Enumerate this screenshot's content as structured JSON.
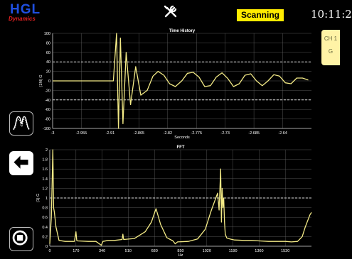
{
  "header": {
    "logo_main": "HGL",
    "logo_sub": "Dynamics",
    "status_label": "Scanning",
    "time": "10:11:2"
  },
  "channel": {
    "name": "CH 1",
    "unit": "G"
  },
  "colors": {
    "trace": "#f3ea86",
    "status_bg": "#ffeb00",
    "panel_bg": "#fff3a6",
    "grid": "#6a6a6a"
  },
  "icons": [
    "tools-icon",
    "peak-icon",
    "back-arrow-icon",
    "stop-icon"
  ],
  "chart_data": [
    {
      "type": "line",
      "title": "Time History",
      "xlabel": "Seconds",
      "ylabel": "(1M) G",
      "x_ticks": [
        "-3",
        "-2.955",
        "-2.91",
        "-2.865",
        "-2.82",
        "-2.775",
        "-2.73",
        "-2.685",
        "-2.64"
      ],
      "y_ticks": [
        "100",
        "80",
        "60",
        "40",
        "20",
        "0",
        "-20",
        "-40",
        "-60",
        "-80",
        "-100"
      ],
      "xlim": [
        -3,
        -2.595
      ],
      "ylim": [
        -100,
        100
      ],
      "dashed_limits": [
        40,
        -40
      ],
      "series": [
        {
          "x": [
            -3.0,
            -2.92,
            -2.905,
            -2.9,
            -2.897,
            -2.894,
            -2.89,
            -2.885,
            -2.878,
            -2.87,
            -2.862,
            -2.852,
            -2.843,
            -2.835,
            -2.826,
            -2.817,
            -2.808,
            -2.798,
            -2.789,
            -2.78,
            -2.771,
            -2.762,
            -2.753,
            -2.744,
            -2.735,
            -2.726,
            -2.717,
            -2.708,
            -2.699,
            -2.69,
            -2.681,
            -2.672,
            -2.663,
            -2.654,
            -2.645,
            -2.636,
            -2.627,
            -2.618,
            -2.609,
            -2.6
          ],
          "y": [
            0,
            0,
            0,
            100,
            -100,
            90,
            -90,
            60,
            -50,
            30,
            -30,
            -20,
            10,
            20,
            12,
            -6,
            -12,
            0,
            16,
            18,
            8,
            -12,
            -10,
            8,
            17,
            5,
            -12,
            -6,
            12,
            15,
            0,
            -10,
            0,
            13,
            10,
            -4,
            -6,
            6,
            6,
            2
          ]
        }
      ]
    },
    {
      "type": "line",
      "title": "FFT",
      "xlabel": "Hz",
      "ylabel": "(1) G",
      "x_ticks": [
        "0",
        "170",
        "340",
        "510",
        "680",
        "850",
        "1020",
        "1190",
        "1360",
        "1530"
      ],
      "y_ticks": [
        "2",
        "1.8",
        "1.6",
        "1.4",
        "1.2",
        "1",
        "0.8",
        "0.6",
        "0.4",
        "0.2",
        "0"
      ],
      "xlim": [
        0,
        1700
      ],
      "ylim": [
        0,
        2
      ],
      "dashed_limits": [
        1
      ],
      "series": [
        {
          "x": [
            0,
            10,
            20,
            25,
            30,
            40,
            60,
            100,
            160,
            170,
            175,
            180,
            250,
            300,
            335,
            345,
            380,
            420,
            470,
            475,
            480,
            550,
            620,
            660,
            690,
            720,
            760,
            800,
            815,
            830,
            900,
            960,
            1010,
            1050,
            1090,
            1100,
            1110,
            1115,
            1120,
            1125,
            1130,
            1135,
            1140,
            1150,
            1170,
            1200,
            1260,
            1310,
            1360,
            1420,
            1480,
            1530,
            1570,
            1610,
            1640,
            1660,
            1690,
            1700
          ],
          "y": [
            0.05,
            0.6,
            2.0,
            0.8,
            0.7,
            0.4,
            0.12,
            0.1,
            0.1,
            0.3,
            0.12,
            0.11,
            0.1,
            0.1,
            0.02,
            0.1,
            0.12,
            0.12,
            0.14,
            0.25,
            0.14,
            0.16,
            0.3,
            0.5,
            0.78,
            0.45,
            0.18,
            0.11,
            0.05,
            0.09,
            0.1,
            0.15,
            0.35,
            0.75,
            1.1,
            0.75,
            1.6,
            0.5,
            1.2,
            0.8,
            1.0,
            0.5,
            0.25,
            0.17,
            0.15,
            0.13,
            0.12,
            0.12,
            0.11,
            0.1,
            0.1,
            0.1,
            0.09,
            0.1,
            0.2,
            0.4,
            0.65,
            0.7
          ]
        }
      ]
    }
  ]
}
